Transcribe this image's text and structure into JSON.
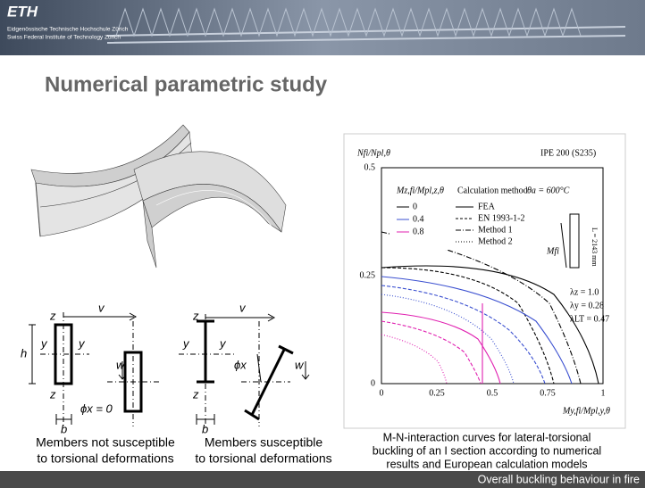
{
  "header": {
    "logo": "ETH",
    "line1": "Eidgenössische Technische Hochschule Zürich",
    "line2": "Swiss Federal Institute of Technology Zurich"
  },
  "title": "Numerical parametric study",
  "sections": {
    "labels": {
      "z": "z",
      "v": "v",
      "y": "y",
      "h": "h",
      "w": "w",
      "b": "b",
      "phi0": "ϕx = 0",
      "phi": "ϕx"
    },
    "left_caption": [
      "Members not susceptible",
      "to torsional deformations"
    ],
    "right_caption": [
      "Members susceptible",
      "to torsional deformations"
    ]
  },
  "plot": {
    "y_label": "Nfi/Npl,θ",
    "title": "IPE 200 (S235)",
    "yticks": [
      "0.5",
      "0.25",
      "0"
    ],
    "xticks": [
      "0",
      "0.25",
      "0.5",
      "0.75",
      "1"
    ],
    "x_label": "My,fi/Mpl,y,θ",
    "legend_header": "Mz,fi/Mpl,z,θ",
    "legend_method": "Calculation method",
    "legend_temp": "θa = 600°C",
    "ratios": [
      "0",
      "0.4",
      "0.8"
    ],
    "methods": [
      "FEA",
      "EN 1993-1-2",
      "Method 1",
      "Method 2"
    ],
    "annotations": [
      "λz = 1.0",
      "λy = 0.28",
      "λLT = 0.47",
      "L = 2143 mm",
      "Mfi"
    ]
  },
  "caption": [
    "M-N-interaction curves for lateral-torsional",
    "buckling of an I section according to numerical",
    "results and European calculation models"
  ],
  "footer": "Overall buckling behaviour in fire"
}
